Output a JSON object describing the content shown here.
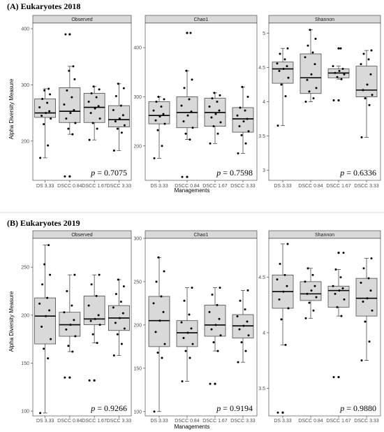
{
  "figure": {
    "y_axis_title": "Alpha Diversity Measure",
    "x_axis_title": "Managements",
    "categories": [
      "DS 3.33",
      "DSCC 0.84",
      "DSCC 1.67",
      "DSCC 3.33"
    ]
  },
  "chart_data": [
    {
      "title": "(A) Eukaryotes 2018",
      "type": "boxplot",
      "facets": [
        {
          "label": "Observed",
          "ylim": [
            130,
            410
          ],
          "yticks": [
            200,
            300,
            400
          ],
          "p_prefix": "p",
          "p_value": "= 0.7075",
          "boxes": [
            {
              "category": "DS 3.33",
              "min": 170,
              "q1": 242,
              "median": 250,
              "q3": 275,
              "max": 293,
              "outliers": [],
              "points": [
                170,
                192,
                230,
                240,
                245,
                250,
                253,
                260,
                268,
                275,
                283,
                290,
                293
              ]
            },
            {
              "category": "DSCC 0.84",
              "min": 212,
              "q1": 233,
              "median": 253,
              "q3": 295,
              "max": 333,
              "outliers": [
                137,
                390
              ],
              "points": [
                137,
                212,
                222,
                232,
                240,
                250,
                255,
                265,
                278,
                290,
                310,
                325,
                333,
                390
              ]
            },
            {
              "category": "DSCC 1.67",
              "min": 202,
              "q1": 233,
              "median": 260,
              "q3": 285,
              "max": 297,
              "outliers": [],
              "points": [
                202,
                222,
                232,
                240,
                250,
                258,
                262,
                270,
                278,
                285,
                292,
                297
              ]
            },
            {
              "category": "DSCC 3.33",
              "min": 183,
              "q1": 225,
              "median": 238,
              "q3": 263,
              "max": 302,
              "outliers": [],
              "points": [
                183,
                215,
                222,
                228,
                235,
                240,
                246,
                255,
                263,
                280,
                294,
                302
              ]
            }
          ]
        },
        {
          "label": "Chao1",
          "ylim": [
            130,
            450
          ],
          "yticks": [
            200,
            300,
            400
          ],
          "p_prefix": "p",
          "p_value": "= 0.7598",
          "boxes": [
            {
              "category": "DS 3.33",
              "min": 175,
              "q1": 245,
              "median": 262,
              "q3": 290,
              "max": 300,
              "outliers": [],
              "points": [
                175,
                200,
                232,
                245,
                252,
                260,
                265,
                272,
                280,
                290,
                295,
                300
              ]
            },
            {
              "category": "DSCC 0.84",
              "min": 213,
              "q1": 237,
              "median": 268,
              "q3": 300,
              "max": 353,
              "outliers": [
                137,
                430
              ],
              "points": [
                137,
                213,
                225,
                237,
                250,
                262,
                270,
                282,
                295,
                318,
                335,
                353,
                430
              ]
            },
            {
              "category": "DSCC 1.67",
              "min": 205,
              "q1": 240,
              "median": 268,
              "q3": 297,
              "max": 308,
              "outliers": [],
              "points": [
                205,
                225,
                240,
                248,
                258,
                265,
                272,
                280,
                290,
                297,
                303,
                308
              ]
            },
            {
              "category": "DSCC 3.33",
              "min": 185,
              "q1": 228,
              "median": 255,
              "q3": 278,
              "max": 320,
              "outliers": [],
              "points": [
                185,
                205,
                222,
                230,
                240,
                250,
                255,
                262,
                272,
                278,
                300,
                320
              ]
            }
          ]
        },
        {
          "label": "Shannon",
          "ylim": [
            2.85,
            5.15
          ],
          "yticks": [
            3.0,
            3.5,
            4.0,
            4.5,
            5.0
          ],
          "p_prefix": "p",
          "p_value": "= 0.6336",
          "boxes": [
            {
              "category": "DS 3.33",
              "min": 3.65,
              "q1": 4.27,
              "median": 4.48,
              "q3": 4.58,
              "max": 4.78,
              "outliers": [],
              "points": [
                3.65,
                4.08,
                4.25,
                4.35,
                4.45,
                4.48,
                4.52,
                4.56,
                4.62,
                4.7,
                4.78
              ]
            },
            {
              "category": "DSCC 0.84",
              "min": 4.0,
              "q1": 4.12,
              "median": 4.35,
              "q3": 4.7,
              "max": 5.05,
              "outliers": [],
              "points": [
                4.0,
                4.05,
                4.15,
                4.2,
                4.32,
                4.4,
                4.55,
                4.65,
                4.72,
                4.82,
                4.92,
                5.05
              ]
            },
            {
              "category": "DSCC 1.67",
              "min": 4.33,
              "q1": 4.35,
              "median": 4.42,
              "q3": 4.48,
              "max": 4.52,
              "outliers": [
                4.02,
                4.78
              ],
              "points": [
                4.02,
                4.33,
                4.36,
                4.4,
                4.42,
                4.45,
                4.48,
                4.52,
                4.78
              ]
            },
            {
              "category": "DSCC 3.33",
              "min": 3.48,
              "q1": 4.07,
              "median": 4.17,
              "q3": 4.52,
              "max": 4.75,
              "outliers": [],
              "points": [
                3.48,
                3.95,
                4.05,
                4.1,
                4.17,
                4.25,
                4.4,
                4.55,
                4.62,
                4.7,
                4.75
              ]
            }
          ]
        }
      ]
    },
    {
      "title": "(B) Eukaryotes 2019",
      "type": "boxplot",
      "facets": [
        {
          "label": "Observed",
          "ylim": [
            95,
            280
          ],
          "yticks": [
            100,
            150,
            200,
            250
          ],
          "p_prefix": "p",
          "p_value": "= 0.9266",
          "boxes": [
            {
              "category": "DS 3.33",
              "min": 98,
              "q1": 170,
              "median": 199,
              "q3": 218,
              "max": 273,
              "outliers": [],
              "points": [
                98,
                155,
                165,
                175,
                188,
                199,
                205,
                212,
                218,
                232,
                242,
                253,
                273
              ]
            },
            {
              "category": "DSCC 0.84",
              "min": 162,
              "q1": 178,
              "median": 190,
              "q3": 203,
              "max": 242,
              "outliers": [
                135
              ],
              "points": [
                135,
                162,
                168,
                178,
                185,
                190,
                195,
                203,
                210,
                225,
                242
              ]
            },
            {
              "category": "DSCC 1.67",
              "min": 171,
              "q1": 190,
              "median": 196,
              "q3": 220,
              "max": 242,
              "outliers": [
                132
              ],
              "points": [
                132,
                171,
                180,
                190,
                194,
                196,
                200,
                210,
                220,
                232,
                242
              ]
            },
            {
              "category": "DSCC 3.33",
              "min": 158,
              "q1": 184,
              "median": 197,
              "q3": 210,
              "max": 237,
              "outliers": [],
              "points": [
                158,
                170,
                180,
                186,
                192,
                197,
                202,
                208,
                214,
                222,
                230,
                237
              ]
            }
          ]
        },
        {
          "label": "Chao1",
          "ylim": [
            95,
            300
          ],
          "yticks": [
            100,
            150,
            200,
            250,
            300
          ],
          "p_prefix": "p",
          "p_value": "= 0.9194",
          "boxes": [
            {
              "category": "DS 3.33",
              "min": 100,
              "q1": 175,
              "median": 205,
              "q3": 233,
              "max": 278,
              "outliers": [],
              "points": [
                100,
                162,
                168,
                178,
                192,
                205,
                215,
                225,
                233,
                250,
                262,
                278
              ]
            },
            {
              "category": "DSCC 0.84",
              "min": 135,
              "q1": 175,
              "median": 191,
              "q3": 205,
              "max": 243,
              "outliers": [],
              "points": [
                135,
                162,
                170,
                178,
                185,
                191,
                196,
                203,
                212,
                228,
                243
              ]
            },
            {
              "category": "DSCC 1.67",
              "min": 170,
              "q1": 187,
              "median": 200,
              "q3": 223,
              "max": 243,
              "outliers": [
                132
              ],
              "points": [
                132,
                170,
                180,
                188,
                195,
                200,
                207,
                215,
                223,
                235,
                243
              ]
            },
            {
              "category": "DSCC 3.33",
              "min": 157,
              "q1": 185,
              "median": 199,
              "q3": 212,
              "max": 240,
              "outliers": [],
              "points": [
                157,
                170,
                180,
                188,
                195,
                199,
                204,
                210,
                218,
                228,
                240
              ]
            }
          ]
        },
        {
          "label": "Shannon",
          "ylim": [
            3.25,
            4.85
          ],
          "yticks": [
            3.5,
            4.0,
            4.5
          ],
          "p_prefix": "p",
          "p_value": "= 0.9880",
          "boxes": [
            {
              "category": "DS 3.33",
              "min": 3.89,
              "q1": 4.22,
              "median": 4.37,
              "q3": 4.52,
              "max": 4.8,
              "outliers": [
                3.28
              ],
              "points": [
                3.28,
                3.89,
                4.12,
                4.22,
                4.3,
                4.37,
                4.42,
                4.48,
                4.52,
                4.62,
                4.8
              ]
            },
            {
              "category": "DSCC 0.84",
              "min": 4.13,
              "q1": 4.29,
              "median": 4.35,
              "q3": 4.46,
              "max": 4.58,
              "outliers": [],
              "points": [
                4.13,
                4.2,
                4.27,
                4.32,
                4.35,
                4.38,
                4.42,
                4.46,
                4.52,
                4.58
              ]
            },
            {
              "category": "DSCC 1.67",
              "min": 4.15,
              "q1": 4.23,
              "median": 4.38,
              "q3": 4.42,
              "max": 4.57,
              "outliers": [
                3.6,
                4.72
              ],
              "points": [
                3.6,
                4.15,
                4.23,
                4.3,
                4.35,
                4.38,
                4.4,
                4.42,
                4.5,
                4.57,
                4.72
              ]
            },
            {
              "category": "DSCC 3.33",
              "min": 3.75,
              "q1": 4.15,
              "median": 4.31,
              "q3": 4.49,
              "max": 4.67,
              "outliers": [],
              "points": [
                3.75,
                3.92,
                4.1,
                4.2,
                4.28,
                4.31,
                4.38,
                4.45,
                4.49,
                4.58,
                4.67
              ]
            }
          ]
        }
      ]
    }
  ]
}
